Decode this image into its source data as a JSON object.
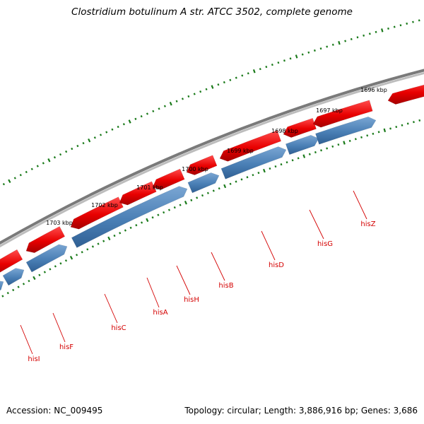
{
  "title": "Clostridium botulinum A str. ATCC 3502, complete genome",
  "footer": {
    "accession": "Accession: NC_009495",
    "summary": "Topology: circular; Length: 3,886,916 bp; Genes: 3,686"
  },
  "tick_labels": [
    "1696 kbp",
    "1697 kbp",
    "1698 kbp",
    "1699 kbp",
    "1700 kbp",
    "1701 kbp",
    "1702 kbp",
    "1703 kbp"
  ],
  "genes": [
    "hisZ",
    "hisG",
    "hisD",
    "hisB",
    "hisH",
    "hisA",
    "hisC",
    "hisF",
    "hisI"
  ],
  "colors": {
    "backbone": "#7a7a7a",
    "forward_feature": "#ee1111",
    "reverse_feature": "#4a7fb5",
    "tick": "#1a7a1a",
    "gene_label": "#d40000"
  }
}
